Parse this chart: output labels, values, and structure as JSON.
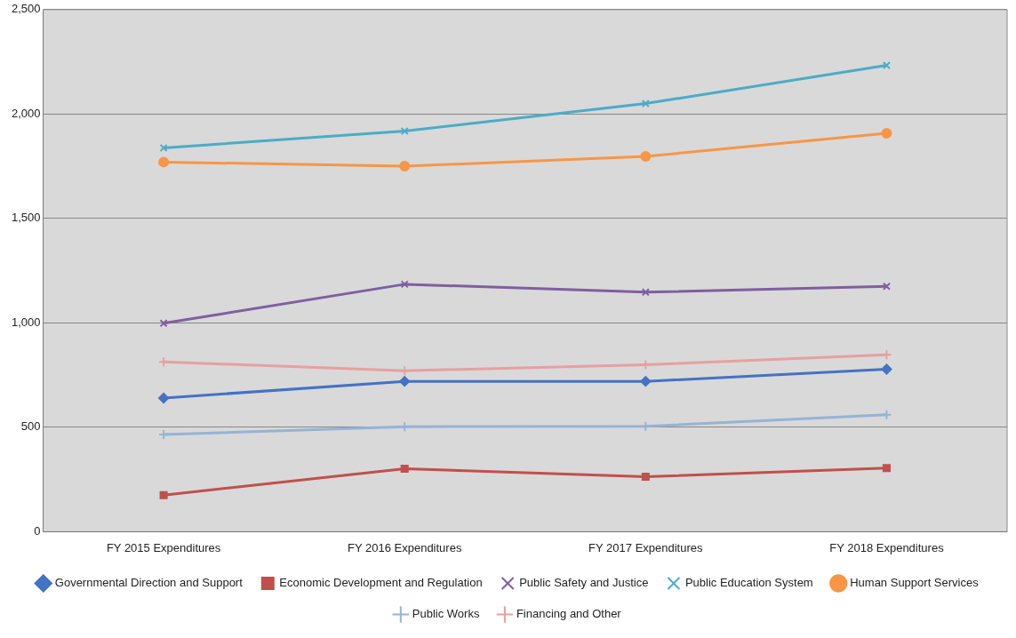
{
  "chart_data": {
    "type": "line",
    "categories": [
      "FY 2015 Expenditures",
      "FY 2016 Expenditures",
      "FY 2017 Expenditures",
      "FY 2018 Expenditures"
    ],
    "series": [
      {
        "name": "Governmental Direction and Support",
        "color": "#4472c4",
        "marker": "diamond",
        "values": [
          640,
          720,
          720,
          778
        ]
      },
      {
        "name": "Economic Development and Regulation",
        "color": "#c0504d",
        "marker": "square",
        "values": [
          175,
          302,
          263,
          305
        ]
      },
      {
        "name": "Public Safety and Justice",
        "color": "#7f5fa0",
        "marker": "cross",
        "values": [
          998,
          1185,
          1147,
          1175
        ]
      },
      {
        "name": "Public Education System",
        "color": "#4bacc6",
        "marker": "cross",
        "values": [
          1838,
          1918,
          2050,
          2233
        ]
      },
      {
        "name": "Human Support Services",
        "color": "#f79646",
        "marker": "circle",
        "values": [
          1770,
          1750,
          1797,
          1908
        ]
      },
      {
        "name": "Public Works",
        "color": "#95b3d7",
        "marker": "plus",
        "values": [
          465,
          503,
          505,
          560
        ]
      },
      {
        "name": "Financing and Other",
        "color": "#e6a0a0",
        "marker": "plus",
        "values": [
          813,
          771,
          799,
          847
        ]
      }
    ],
    "ylim": [
      0,
      2500
    ],
    "yticks": [
      0,
      500,
      {
        "value": 1000,
        "label": "1,000"
      },
      {
        "value": 1500,
        "label": "1,500"
      },
      {
        "value": 2000,
        "label": "2,000"
      },
      {
        "value": 2500,
        "label": "2,500"
      }
    ],
    "grid": "y",
    "legend": "bottom",
    "line_style": "solid"
  }
}
